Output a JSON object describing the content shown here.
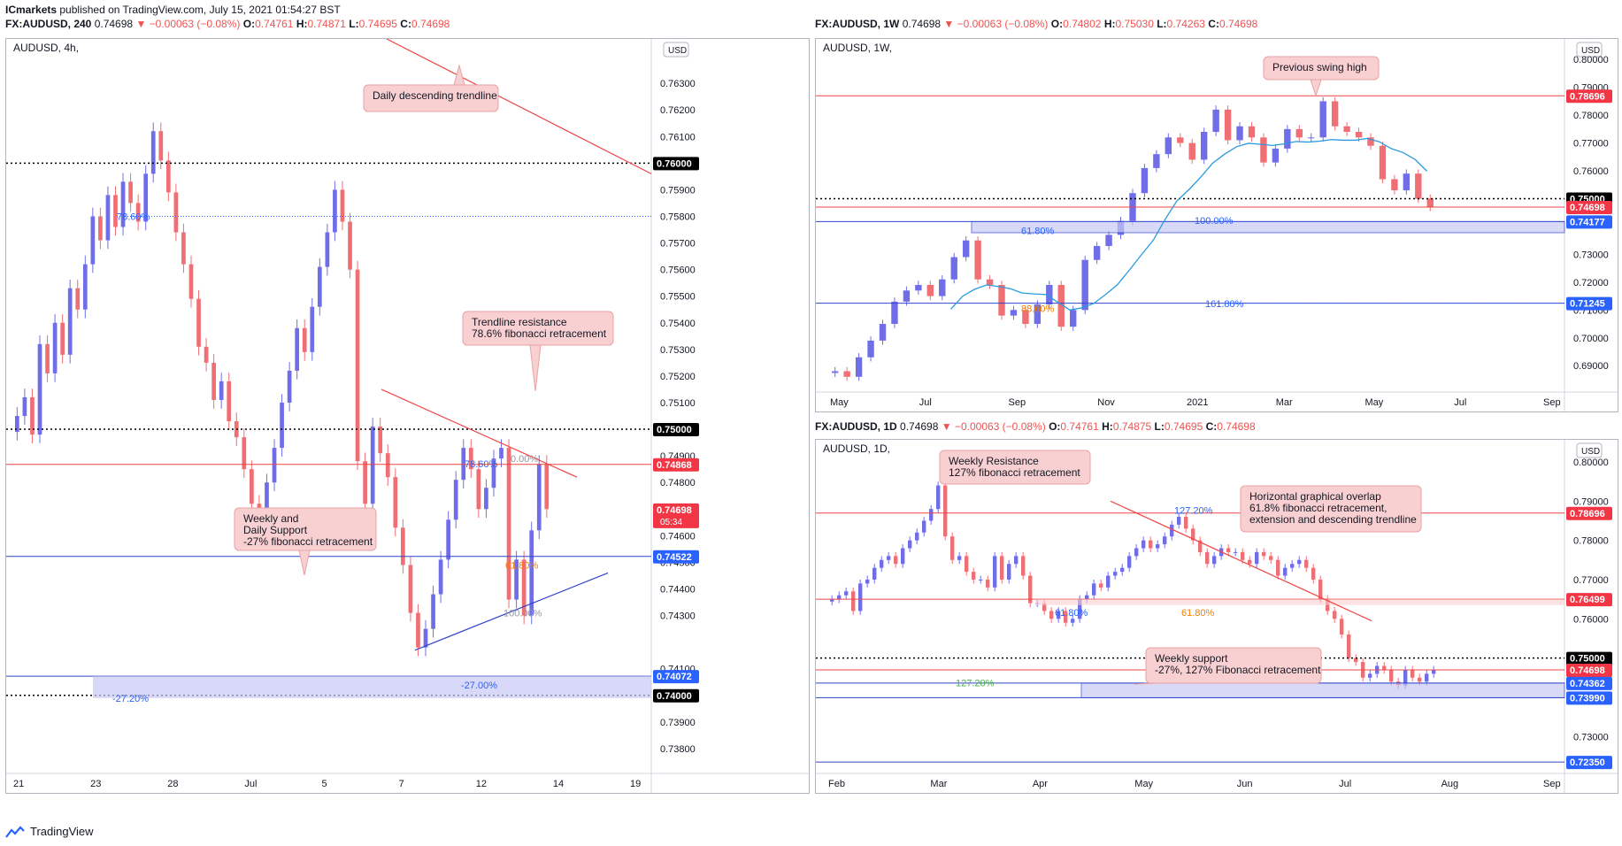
{
  "header": {
    "author": "ICmarkets",
    "published": "published on TradingView.com, July 15, 2021 01:54:27 BST"
  },
  "footer": {
    "brand": "TradingView"
  },
  "colors": {
    "up": "#6f6ee8",
    "down": "#ef6f74",
    "trend": "#ef4444",
    "support": "#3344cc",
    "zone": "#c7c9f5",
    "callout_bg": "#f8d0d2",
    "callout_border": "#e8a2a6",
    "ema": "#2a9ae0"
  },
  "panels": [
    {
      "id": "h4",
      "header": {
        "symbol": "FX:AUDUSD, 240",
        "last": "0.74698",
        "change": "▼ −0.00063 (−0.08%)",
        "o": "0.74761",
        "h": "0.74871",
        "l": "0.74695",
        "c": "0.74698"
      },
      "inner_title": "AUDUSD, 4h,",
      "currency": "USD",
      "price_min": 0.7372,
      "price_max": 0.7644,
      "ticks": [
        "0.76300",
        "0.76200",
        "0.76100",
        "0.75900",
        "0.75800",
        "0.75700",
        "0.75600",
        "0.75500",
        "0.75400",
        "0.75300",
        "0.75200",
        "0.75100",
        "0.74900",
        "0.74800",
        "0.74600",
        "0.74500",
        "0.74400",
        "0.74300",
        "0.74100",
        "0.73900",
        "0.73800"
      ],
      "tags": [
        {
          "label": "0.76000",
          "value": 0.76,
          "style": "black"
        },
        {
          "label": "0.75000",
          "value": 0.75,
          "style": "black"
        },
        {
          "label": "0.74868",
          "value": 0.74868,
          "style": "red"
        },
        {
          "label": "0.74698",
          "value": 0.74698,
          "style": "red",
          "sub": "05:34"
        },
        {
          "label": "0.74522",
          "value": 0.74522,
          "style": "blue"
        },
        {
          "label": "0.74072",
          "value": 0.74072,
          "style": "blue"
        },
        {
          "label": "0.74000",
          "value": 0.74,
          "style": "black"
        }
      ],
      "xlabels": [
        "21",
        "23",
        "28",
        "Jul",
        "5",
        "7",
        "12",
        "14",
        "19"
      ],
      "fib_labels": [
        "78.60%",
        "78.60%",
        "0.00%",
        "61.80%",
        "100.00%",
        "-27.00%",
        "-27.20%"
      ],
      "callouts": [
        {
          "lines": [
            "Daily descending trendline"
          ]
        },
        {
          "lines": [
            "Trendline resistance",
            "78.6% fibonacci retracement"
          ]
        },
        {
          "lines": [
            "Weekly and",
            "Daily Support",
            "-27% fibonacci retracement"
          ]
        }
      ]
    },
    {
      "id": "w1",
      "header": {
        "symbol": "FX:AUDUSD, 1W",
        "last": "0.74698",
        "change": "▼ −0.00063 (−0.08%)",
        "o": "0.74802",
        "h": "0.75030",
        "l": "0.74263",
        "c": "0.74698"
      },
      "inner_title": "AUDUSD, 1W,",
      "currency": "USD",
      "price_min": 0.6818,
      "price_max": 0.8058,
      "ticks": [
        "0.80000",
        "0.79000",
        "0.78000",
        "0.77000",
        "0.76000",
        "0.73000",
        "0.72000",
        "0.71000",
        "0.70000",
        "0.69000"
      ],
      "tags": [
        {
          "label": "0.78696",
          "value": 0.78696,
          "style": "red"
        },
        {
          "label": "0.75000",
          "value": 0.75,
          "style": "black"
        },
        {
          "label": "0.74698",
          "value": 0.74698,
          "style": "red"
        },
        {
          "label": "0.74177",
          "value": 0.74177,
          "style": "blue"
        },
        {
          "label": "0.71245",
          "value": 0.71245,
          "style": "blue"
        }
      ],
      "xlabels": [
        "May",
        "Jul",
        "Sep",
        "Nov",
        "2021",
        "Mar",
        "May",
        "Jul",
        "Sep"
      ],
      "fib_labels": [
        "61.80%",
        "100.00%",
        "88.60%",
        "161.80%"
      ],
      "callouts": [
        {
          "lines": [
            "Previous swing high"
          ]
        }
      ]
    },
    {
      "id": "d1",
      "header": {
        "symbol": "FX:AUDUSD, 1D",
        "last": "0.74698",
        "change": "▼ −0.00063 (−0.08%)",
        "o": "0.74761",
        "h": "0.74875",
        "l": "0.74695",
        "c": "0.74698"
      },
      "inner_title": "AUDUSD, 1D,",
      "currency": "USD",
      "price_min": 0.7215,
      "price_max": 0.8045,
      "ticks": [
        "0.80000",
        "0.79000",
        "0.78000",
        "0.77000",
        "0.76000",
        "0.73000"
      ],
      "tags": [
        {
          "label": "0.78696",
          "value": 0.78696,
          "style": "red"
        },
        {
          "label": "0.76499",
          "value": 0.76499,
          "style": "red"
        },
        {
          "label": "0.75000",
          "value": 0.75,
          "style": "black"
        },
        {
          "label": "0.74698",
          "value": 0.74698,
          "style": "red"
        },
        {
          "label": "0.74362",
          "value": 0.74362,
          "style": "blue"
        },
        {
          "label": "0.73990",
          "value": 0.7399,
          "style": "blue"
        },
        {
          "label": "0.72350",
          "value": 0.7235,
          "style": "blue"
        }
      ],
      "xlabels": [
        "Feb",
        "Mar",
        "Apr",
        "May",
        "Jun",
        "Jul",
        "Aug",
        "Sep"
      ],
      "fib_labels": [
        "127.20%",
        "61.80%",
        "61.80%",
        "127.20%"
      ],
      "callouts": [
        {
          "lines": [
            "Weekly Resistance",
            "127% fibonacci retracement"
          ]
        },
        {
          "lines": [
            "Horizontal graphical overlap",
            "61.8% fibonacci retracement,",
            "extension and descending trendline"
          ]
        },
        {
          "lines": [
            "Weekly support",
            "-27%, 127% Fibonacci retracement"
          ]
        }
      ]
    }
  ],
  "chart_data": [
    {
      "type": "candlestick",
      "title": "AUDUSD, 4h,",
      "ylim": [
        0.7372,
        0.7644
      ],
      "closes": [
        0.7505,
        0.7512,
        0.7498,
        0.7532,
        0.7521,
        0.754,
        0.7528,
        0.7553,
        0.7545,
        0.7562,
        0.758,
        0.7571,
        0.7588,
        0.7576,
        0.7593,
        0.7585,
        0.7578,
        0.7596,
        0.7612,
        0.7601,
        0.7589,
        0.7574,
        0.7562,
        0.7549,
        0.7531,
        0.7525,
        0.7511,
        0.7518,
        0.7503,
        0.7497,
        0.7485,
        0.7472,
        0.7468,
        0.748,
        0.7493,
        0.751,
        0.7522,
        0.7538,
        0.7529,
        0.7546,
        0.7561,
        0.7574,
        0.759,
        0.7578,
        0.756,
        0.7488,
        0.7472,
        0.7501,
        0.7491,
        0.7482,
        0.7463,
        0.7449,
        0.7431,
        0.7418,
        0.7425,
        0.7438,
        0.7451,
        0.7466,
        0.7481,
        0.7493,
        0.7485,
        0.747,
        0.7478,
        0.7489,
        0.7493,
        0.7436,
        0.7451,
        0.743,
        0.7462,
        0.7487,
        0.747
      ],
      "levels": {
        "resistance": 0.75,
        "upper": 0.76,
        "support_zone": [
          0.7399,
          0.74072
        ],
        "last": 0.74698
      }
    },
    {
      "type": "candlestick",
      "title": "AUDUSD, 1W,",
      "ylim": [
        0.6818,
        0.8058
      ],
      "closes": [
        0.688,
        0.686,
        0.693,
        0.699,
        0.705,
        0.713,
        0.717,
        0.719,
        0.715,
        0.721,
        0.729,
        0.735,
        0.721,
        0.719,
        0.708,
        0.71,
        0.705,
        0.712,
        0.719,
        0.704,
        0.71,
        0.728,
        0.733,
        0.737,
        0.742,
        0.752,
        0.761,
        0.766,
        0.772,
        0.77,
        0.764,
        0.774,
        0.782,
        0.771,
        0.776,
        0.772,
        0.763,
        0.768,
        0.775,
        0.772,
        0.772,
        0.785,
        0.776,
        0.774,
        0.772,
        0.769,
        0.757,
        0.753,
        0.759,
        0.75,
        0.747
      ],
      "levels": {
        "swing_high": 0.78696,
        "support": 0.74177,
        "ext": 0.71245,
        "last": 0.74698
      }
    },
    {
      "type": "candlestick",
      "title": "AUDUSD, 1D,",
      "ylim": [
        0.7215,
        0.8045
      ],
      "closes": [
        0.765,
        0.766,
        0.767,
        0.762,
        0.769,
        0.77,
        0.773,
        0.775,
        0.776,
        0.774,
        0.778,
        0.78,
        0.782,
        0.785,
        0.788,
        0.794,
        0.781,
        0.775,
        0.776,
        0.772,
        0.77,
        0.77,
        0.768,
        0.776,
        0.77,
        0.774,
        0.776,
        0.771,
        0.764,
        0.764,
        0.762,
        0.76,
        0.762,
        0.759,
        0.76,
        0.765,
        0.766,
        0.769,
        0.768,
        0.771,
        0.772,
        0.773,
        0.776,
        0.778,
        0.78,
        0.778,
        0.779,
        0.781,
        0.784,
        0.786,
        0.783,
        0.78,
        0.777,
        0.774,
        0.776,
        0.778,
        0.777,
        0.777,
        0.775,
        0.774,
        0.777,
        0.776,
        0.775,
        0.771,
        0.773,
        0.774,
        0.775,
        0.773,
        0.77,
        0.765,
        0.762,
        0.76,
        0.756,
        0.75,
        0.749,
        0.745,
        0.746,
        0.748,
        0.747,
        0.744,
        0.743,
        0.747,
        0.745,
        0.744,
        0.746,
        0.747
      ],
      "levels": {
        "resistance": 0.78696,
        "overlap": 0.76499,
        "round": 0.75,
        "support_zone": [
          0.7399,
          0.74362
        ],
        "lower": 0.7235,
        "last": 0.74698
      }
    }
  ]
}
